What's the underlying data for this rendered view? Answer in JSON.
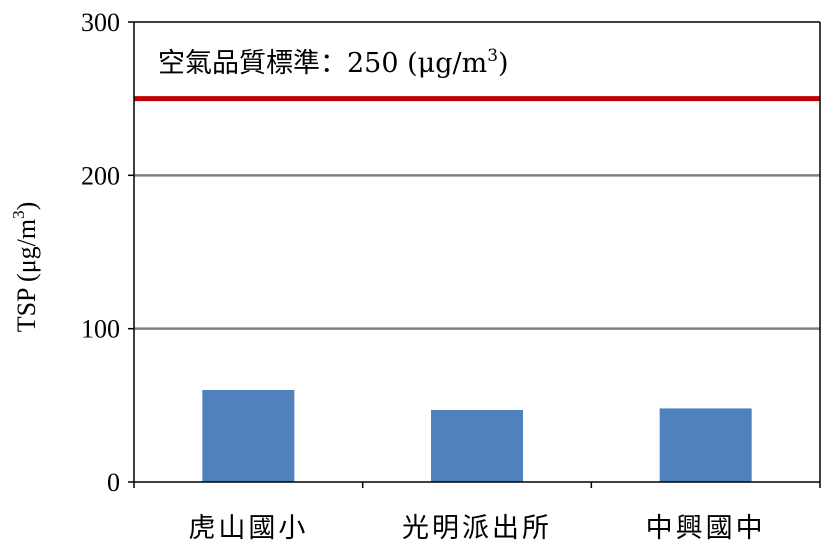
{
  "chart_data": {
    "type": "bar",
    "categories": [
      "虎山國小",
      "光明派出所",
      "中興國中"
    ],
    "values": [
      60,
      47,
      48
    ],
    "ylabel_main": "TSP (μg/m",
    "ylabel_sup": "3",
    "ylabel_tail": ")",
    "ylim": [
      0,
      300
    ],
    "yticks": [
      "0",
      "100",
      "200",
      "300"
    ],
    "bar_color": "#4f81bd",
    "grid": true,
    "grid_color": "#808080",
    "standard": {
      "value": 250,
      "color": "#c00000",
      "label_main": "空氣品質標準：250  (μg/m",
      "label_sup": "3",
      "label_tail": ")"
    }
  }
}
